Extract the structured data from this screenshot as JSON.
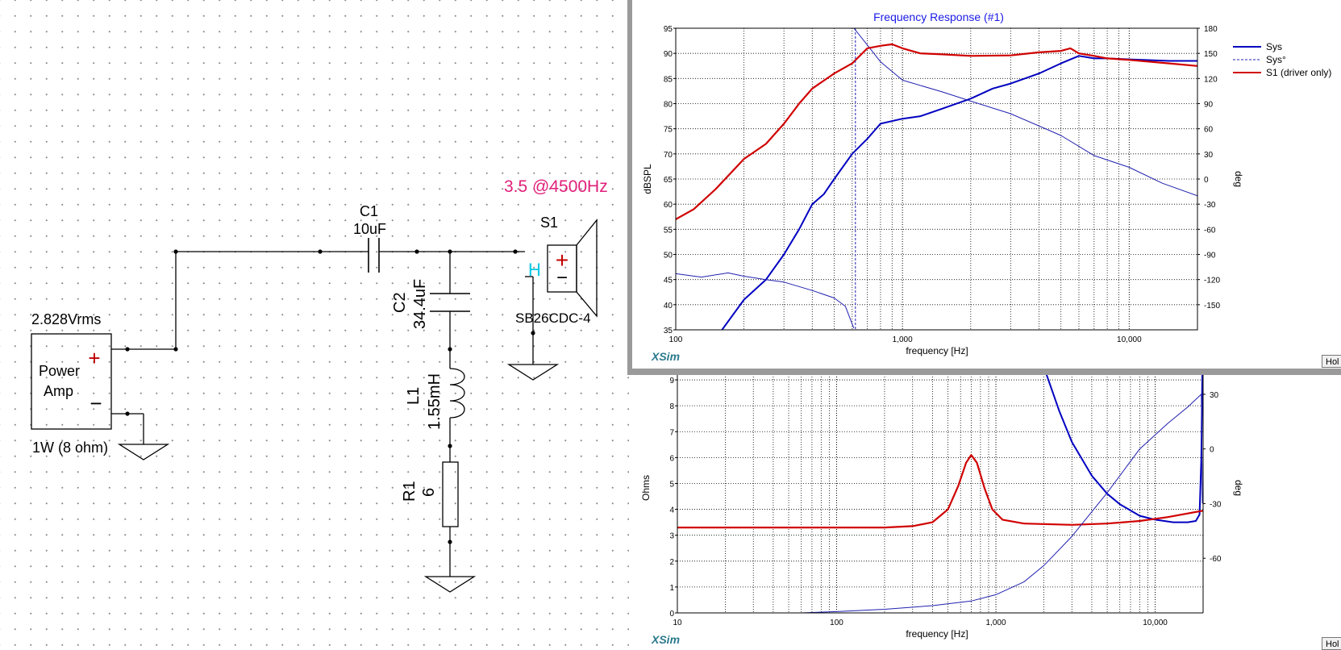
{
  "schematic": {
    "amp": {
      "voltage": "2.828Vrms",
      "label_line1": "Power",
      "label_line2": "Amp",
      "plus": "+",
      "minus": "−",
      "power": "1W (8 ohm)"
    },
    "c1": {
      "name": "C1",
      "value": "10uF"
    },
    "c2": {
      "name": "C2",
      "value": "34.4uF"
    },
    "l1": {
      "name": "L1",
      "value": "1.55mH"
    },
    "r1": {
      "name": "R1",
      "value": "6"
    },
    "s1": {
      "name": "S1",
      "model": "SB26CDC-4",
      "plus": "+",
      "minus": "−",
      "h_marker": "H"
    },
    "annotation": "3.5 @4500Hz"
  },
  "colors": {
    "sys": "#0000c0",
    "sys_phase": "#2020b0",
    "s1": "#d00000",
    "annotation": "#e0207a",
    "h_marker": "#00c8e6",
    "title": "#1a1ae6",
    "brand": "#2b7a8c",
    "grid": "#000000"
  },
  "fr_window": {
    "title": "Frequency Response (#1)",
    "brand": "XSim",
    "hold_label": "Hol",
    "legend": [
      {
        "label": "Sys"
      },
      {
        "label": "Sys°"
      },
      {
        "label": "S1 (driver only)"
      }
    ],
    "chart_data": {
      "type": "line",
      "title": "Frequency Response (#1)",
      "xlabel": "frequency [Hz]",
      "ylabel": "dBSPL",
      "y2label": "deg",
      "x_scale": "log",
      "xlim": [
        100,
        20000
      ],
      "ylim": [
        35,
        95
      ],
      "y2lim": [
        -180,
        180
      ],
      "x_ticks": [
        "100",
        "1,000",
        "10,000"
      ],
      "y_ticks": [
        "35",
        "40",
        "45",
        "50",
        "55",
        "60",
        "65",
        "70",
        "75",
        "80",
        "85",
        "90",
        "95"
      ],
      "y2_ticks": [
        "-150",
        "-120",
        "-90",
        "-60",
        "-30",
        "0",
        "30",
        "60",
        "90",
        "120",
        "150",
        "180"
      ],
      "grid": true,
      "legend_position": "right",
      "series": [
        {
          "name": "Sys",
          "axis": "left",
          "points": [
            [
              160,
              35
            ],
            [
              200,
              41
            ],
            [
              250,
              45
            ],
            [
              300,
              50
            ],
            [
              350,
              55
            ],
            [
              400,
              60
            ],
            [
              450,
              62
            ],
            [
              500,
              65
            ],
            [
              600,
              70
            ],
            [
              700,
              73
            ],
            [
              800,
              76
            ],
            [
              1000,
              77
            ],
            [
              1200,
              77.5
            ],
            [
              1500,
              79
            ],
            [
              2000,
              81
            ],
            [
              2500,
              83
            ],
            [
              3000,
              84
            ],
            [
              4000,
              86
            ],
            [
              5000,
              88
            ],
            [
              6000,
              89.5
            ],
            [
              7000,
              89
            ],
            [
              8000,
              89
            ],
            [
              10000,
              88.8
            ],
            [
              15000,
              88.5
            ],
            [
              20000,
              88.5
            ]
          ]
        },
        {
          "name": "Sys°",
          "axis": "right",
          "points": [
            [
              100,
              -113
            ],
            [
              130,
              -117
            ],
            [
              170,
              -112
            ],
            [
              200,
              -116
            ],
            [
              250,
              -120
            ],
            [
              300,
              -123
            ],
            [
              400,
              -133
            ],
            [
              500,
              -142
            ],
            [
              560,
              -152
            ],
            [
              610,
              -178
            ],
            [
              611,
              180
            ],
            [
              700,
              160
            ],
            [
              800,
              140
            ],
            [
              1000,
              118
            ],
            [
              1500,
              104
            ],
            [
              2000,
              93
            ],
            [
              3000,
              78
            ],
            [
              5000,
              52
            ],
            [
              7000,
              28
            ],
            [
              10000,
              14
            ],
            [
              14000,
              -5
            ],
            [
              20000,
              -20
            ]
          ]
        },
        {
          "name": "S1 (driver only)",
          "axis": "left",
          "points": [
            [
              100,
              57
            ],
            [
              120,
              59
            ],
            [
              150,
              63
            ],
            [
              200,
              69
            ],
            [
              250,
              72
            ],
            [
              300,
              76
            ],
            [
              350,
              80
            ],
            [
              400,
              83
            ],
            [
              500,
              86
            ],
            [
              600,
              88
            ],
            [
              700,
              91
            ],
            [
              800,
              91.5
            ],
            [
              900,
              91.8
            ],
            [
              1000,
              91
            ],
            [
              1200,
              90
            ],
            [
              1500,
              89.8
            ],
            [
              2000,
              89.5
            ],
            [
              3000,
              89.6
            ],
            [
              4000,
              90.2
            ],
            [
              5000,
              90.5
            ],
            [
              5500,
              91
            ],
            [
              6000,
              90
            ],
            [
              7000,
              89.5
            ],
            [
              8000,
              89
            ],
            [
              10000,
              88.7
            ],
            [
              15000,
              88
            ],
            [
              20000,
              87.5
            ]
          ]
        },
        {
          "name": "",
          "axis": "left",
          "kind": "vertical-dashed",
          "x": 620
        }
      ]
    }
  },
  "imp_window": {
    "brand": "XSim",
    "hold_label": "Hol",
    "chart_data": {
      "type": "line",
      "xlabel": "frequency [Hz]",
      "ylabel": "Ohms",
      "y2label": "deg",
      "x_scale": "log",
      "xlim": [
        10,
        20000
      ],
      "ylim": [
        0,
        9.5
      ],
      "y2lim": [
        -90,
        45
      ],
      "x_ticks": [
        "10",
        "100",
        "1,000",
        "10,000"
      ],
      "y_ticks": [
        "0",
        "1",
        "2",
        "3",
        "4",
        "5",
        "6",
        "7",
        "8",
        "9"
      ],
      "y2_ticks": [
        "-60",
        "-30",
        "0",
        "30"
      ],
      "grid": true,
      "series": [
        {
          "axis": "left",
          "color_key": "sys",
          "points": [
            [
              2000,
              9.5
            ],
            [
              2500,
              7.8
            ],
            [
              3000,
              6.6
            ],
            [
              4000,
              5.3
            ],
            [
              5000,
              4.6
            ],
            [
              6000,
              4.2
            ],
            [
              8000,
              3.75
            ],
            [
              10000,
              3.6
            ],
            [
              13000,
              3.5
            ],
            [
              16000,
              3.5
            ],
            [
              18000,
              3.55
            ],
            [
              19000,
              3.8
            ],
            [
              19500,
              6
            ],
            [
              19800,
              9.5
            ]
          ]
        },
        {
          "axis": "left",
          "color_key": "s1",
          "points": [
            [
              10,
              3.3
            ],
            [
              100,
              3.3
            ],
            [
              200,
              3.3
            ],
            [
              300,
              3.35
            ],
            [
              400,
              3.5
            ],
            [
              500,
              4.0
            ],
            [
              580,
              4.9
            ],
            [
              650,
              5.8
            ],
            [
              700,
              6.1
            ],
            [
              760,
              5.8
            ],
            [
              850,
              4.8
            ],
            [
              950,
              4.0
            ],
            [
              1100,
              3.6
            ],
            [
              1500,
              3.45
            ],
            [
              3000,
              3.4
            ],
            [
              5000,
              3.45
            ],
            [
              8000,
              3.55
            ],
            [
              12000,
              3.7
            ],
            [
              20000,
              3.95
            ]
          ]
        },
        {
          "axis": "right",
          "color_key": "sys_phase",
          "points": [
            [
              60,
              -90
            ],
            [
              100,
              -89.3
            ],
            [
              200,
              -88
            ],
            [
              400,
              -86
            ],
            [
              700,
              -83.5
            ],
            [
              1000,
              -80
            ],
            [
              1500,
              -73
            ],
            [
              2000,
              -64
            ],
            [
              3000,
              -48
            ],
            [
              5000,
              -24
            ],
            [
              8000,
              0
            ],
            [
              12000,
              14
            ],
            [
              16000,
              23
            ],
            [
              19500,
              30
            ],
            [
              19800,
              -30
            ]
          ]
        }
      ]
    }
  }
}
